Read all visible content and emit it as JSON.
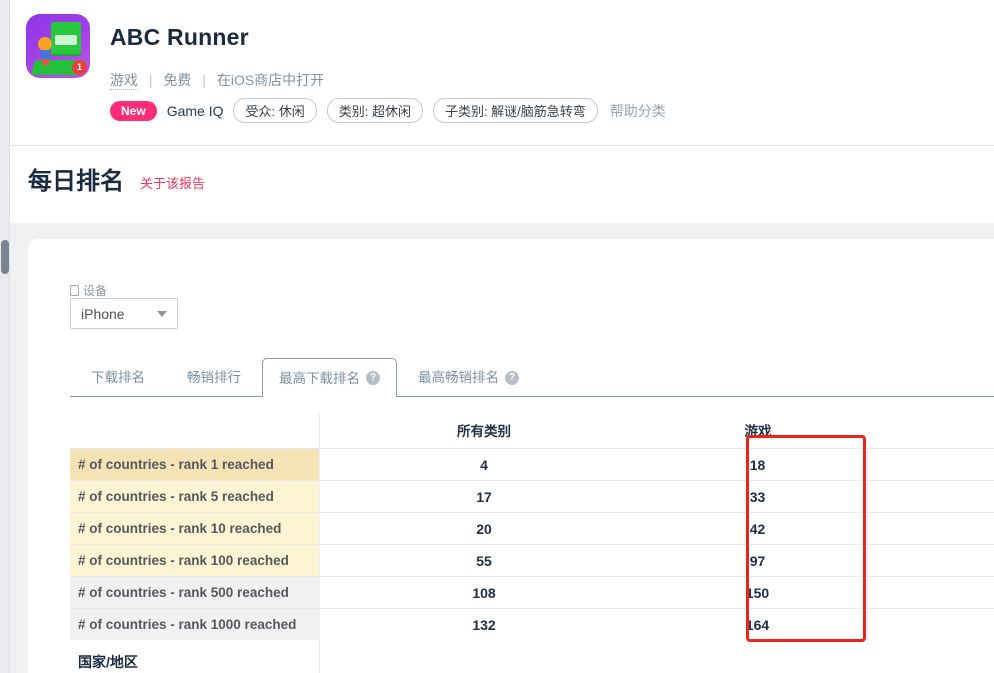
{
  "header": {
    "app_name": "ABC Runner",
    "icon_badge": "1",
    "meta": {
      "category": "游戏",
      "price": "免费",
      "store_link": "在iOS商店中打开",
      "separator": "|"
    },
    "badge_new": "New",
    "game_iq_label": "Game IQ",
    "pills": [
      "受众: 休闲",
      "类别: 超休闲",
      "子类别: 解谜/脑筋急转弯"
    ],
    "help_link": "帮助分类"
  },
  "section": {
    "title": "每日排名",
    "about_link": "关于该报告"
  },
  "filters": {
    "device_label": "设备",
    "device_value": "iPhone"
  },
  "tabs": [
    {
      "label": "下载排名",
      "active": false
    },
    {
      "label": "畅销排行",
      "active": false
    },
    {
      "label": "最高下载排名",
      "active": true
    },
    {
      "label": "最高畅销排名",
      "active": false
    }
  ],
  "icons": {
    "help_glyph": "?"
  },
  "table": {
    "columns": {
      "all_categories": "所有类别",
      "games": "游戏"
    },
    "rows": [
      {
        "label": "# of countries - rank 1 reached",
        "all_categories": "4",
        "games": "18"
      },
      {
        "label": "# of countries - rank 5 reached",
        "all_categories": "17",
        "games": "33"
      },
      {
        "label": "# of countries - rank 10 reached",
        "all_categories": "20",
        "games": "42"
      },
      {
        "label": "# of countries - rank 100 reached",
        "all_categories": "55",
        "games": "97"
      },
      {
        "label": "# of countries - rank 500 reached",
        "all_categories": "108",
        "games": "150"
      },
      {
        "label": "# of countries - rank 1000 reached",
        "all_categories": "132",
        "games": "164"
      }
    ],
    "footer_header": "国家/地区"
  },
  "annotation": {
    "highlighted_column": "游戏"
  },
  "colors": {
    "accent_pink": "#ff2d78",
    "link_red": "#f5365f",
    "annotation_red": "#ea2517",
    "row_highlight_dark": "#f6e3b5",
    "row_highlight": "#fcf4d2",
    "row_gray": "#f1f1f2",
    "tab_border": "#8c99a6"
  }
}
